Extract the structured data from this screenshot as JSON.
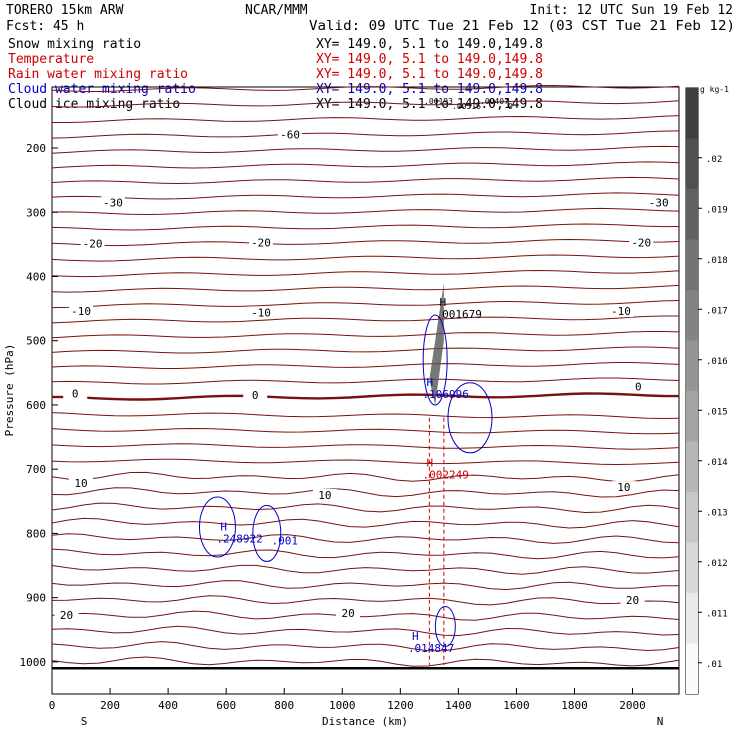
{
  "header": {
    "model": "TORERO  15km ARW",
    "center": "NCAR/MMM",
    "init": "Init: 12 UTC Sun 19 Feb 12",
    "fcst": "Fcst:   45 h",
    "valid": "Valid: 09 UTC Tue 21 Feb 12 (03 CST Tue 21 Feb 12)"
  },
  "fields": [
    {
      "name": "Snow mixing ratio",
      "xy": "XY= 149.0,  5.1 to 149.0,149.8",
      "color": "#000000"
    },
    {
      "name": "Temperature",
      "xy": "XY= 149.0,  5.1 to 149.0,149.8",
      "color": "#cc0000"
    },
    {
      "name": "Rain water mixing ratio",
      "xy": "XY= 149.0,  5.1 to 149.0,149.8",
      "color": "#cc0000"
    },
    {
      "name": "Cloud water mixing ratio",
      "xy": "XY= 149.0,  5.1 to 149.0,149.8",
      "color": "#0000cc"
    },
    {
      "name": "Cloud ice mixing ratio",
      "xy": "XY= 149.0,  5.1 to 149.0,149.8",
      "color": "#000000"
    }
  ],
  "chart_data": {
    "type": "cross-section",
    "xlabel": "Distance (km)",
    "ylabel": "Pressure (hPa)",
    "xlim": [
      0,
      2160
    ],
    "ylim": [
      1050,
      105
    ],
    "x_ticks": [
      0,
      200,
      400,
      600,
      800,
      1000,
      1200,
      1400,
      1600,
      1800,
      2000
    ],
    "y_ticks": [
      200,
      300,
      400,
      500,
      600,
      700,
      800,
      900,
      1000
    ],
    "x_end_labels": {
      "left": "S",
      "right": "N"
    },
    "temperature_labels": [
      {
        "text": "-60",
        "x": 820,
        "p": 182
      },
      {
        "text": "-30",
        "x": 210,
        "p": 288
      },
      {
        "text": "-30",
        "x": 2090,
        "p": 288
      },
      {
        "text": "-20",
        "x": 140,
        "p": 352
      },
      {
        "text": "-20",
        "x": 720,
        "p": 350
      },
      {
        "text": "-20",
        "x": 2030,
        "p": 350
      },
      {
        "text": "-10",
        "x": 100,
        "p": 457
      },
      {
        "text": "-10",
        "x": 720,
        "p": 459
      },
      {
        "text": "-10",
        "x": 1960,
        "p": 457
      },
      {
        "text": "0",
        "x": 80,
        "p": 585
      },
      {
        "text": "0",
        "x": 700,
        "p": 588
      },
      {
        "text": "0",
        "x": 2020,
        "p": 574
      },
      {
        "text": "10",
        "x": 100,
        "p": 725
      },
      {
        "text": "10",
        "x": 940,
        "p": 743
      },
      {
        "text": "10",
        "x": 1970,
        "p": 731
      },
      {
        "text": "20",
        "x": 50,
        "p": 930
      },
      {
        "text": "20",
        "x": 1020,
        "p": 927
      },
      {
        "text": "20",
        "x": 2000,
        "p": 907
      }
    ],
    "maxima": [
      {
        "field": "snow",
        "label": "H",
        "value": ".001679",
        "x": 1335,
        "p": 455
      },
      {
        "field": "cloud water",
        "label": "H",
        "value": ".106996",
        "x": 1290,
        "p": 580
      },
      {
        "field": "rain water",
        "label": "H",
        "value": ".002249",
        "x": 1290,
        "p": 705
      },
      {
        "field": "cloud water",
        "label": "H",
        "value": ".248922",
        "x": 580,
        "p": 805
      },
      {
        "field": "cloud water",
        "label": "",
        "value": ".001",
        "x": 770,
        "p": 808
      },
      {
        "field": "cloud water",
        "label": "H",
        "value": ".014847",
        "x": 1240,
        "p": 975
      }
    ],
    "top_overlap_values": [
      ".00193",
      ".00516",
      ".00407",
      "0"
    ],
    "colorbar": {
      "unit": "g kg-1",
      "ticks": [
        ".01",
        ".011",
        ".012",
        ".013",
        ".014",
        ".015",
        ".016",
        ".017",
        ".018",
        ".019",
        ".02"
      ]
    }
  }
}
